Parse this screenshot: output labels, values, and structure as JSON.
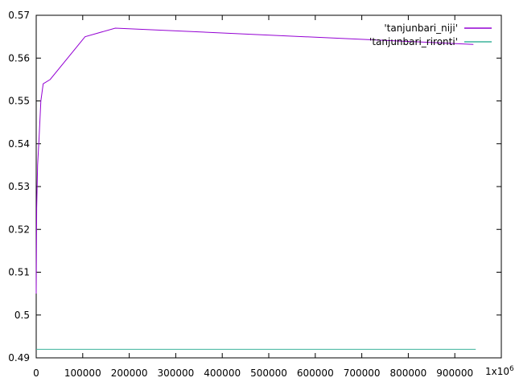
{
  "chart_data": {
    "type": "line",
    "title": "",
    "xlabel": "",
    "ylabel": "",
    "xlim": [
      0,
      1000000
    ],
    "ylim": [
      0.49,
      0.57
    ],
    "x_ticks": [
      0,
      100000,
      200000,
      300000,
      400000,
      500000,
      600000,
      700000,
      800000,
      900000
    ],
    "x_tick_labels": [
      "0",
      "100000",
      "200000",
      "300000",
      "400000",
      "500000",
      "600000",
      "700000",
      "800000",
      "900000"
    ],
    "x_multiplier_label": {
      "base": "1x10",
      "exponent": "6"
    },
    "y_ticks": [
      0.49,
      0.5,
      0.51,
      0.52,
      0.53,
      0.54,
      0.55,
      0.56,
      0.57
    ],
    "y_tick_labels": [
      "0.49",
      "0.5",
      "0.51",
      "0.52",
      "0.53",
      "0.54",
      "0.55",
      "0.56",
      "0.57"
    ],
    "grid": false,
    "legend_position": "top-right",
    "series": [
      {
        "name": "'tanjunbari_niji'",
        "color": "#9400d3",
        "x": [
          0,
          1000,
          3000,
          6000,
          10000,
          15000,
          30000,
          105000,
          170000,
          940000
        ],
        "y": [
          0.505,
          0.525,
          0.535,
          0.541,
          0.55,
          0.554,
          0.555,
          0.565,
          0.567,
          0.5632
        ]
      },
      {
        "name": "'tanjunbari_rironti'",
        "color": "#3cb39b",
        "x": [
          0,
          945000
        ],
        "y": [
          0.492,
          0.492
        ]
      }
    ]
  }
}
